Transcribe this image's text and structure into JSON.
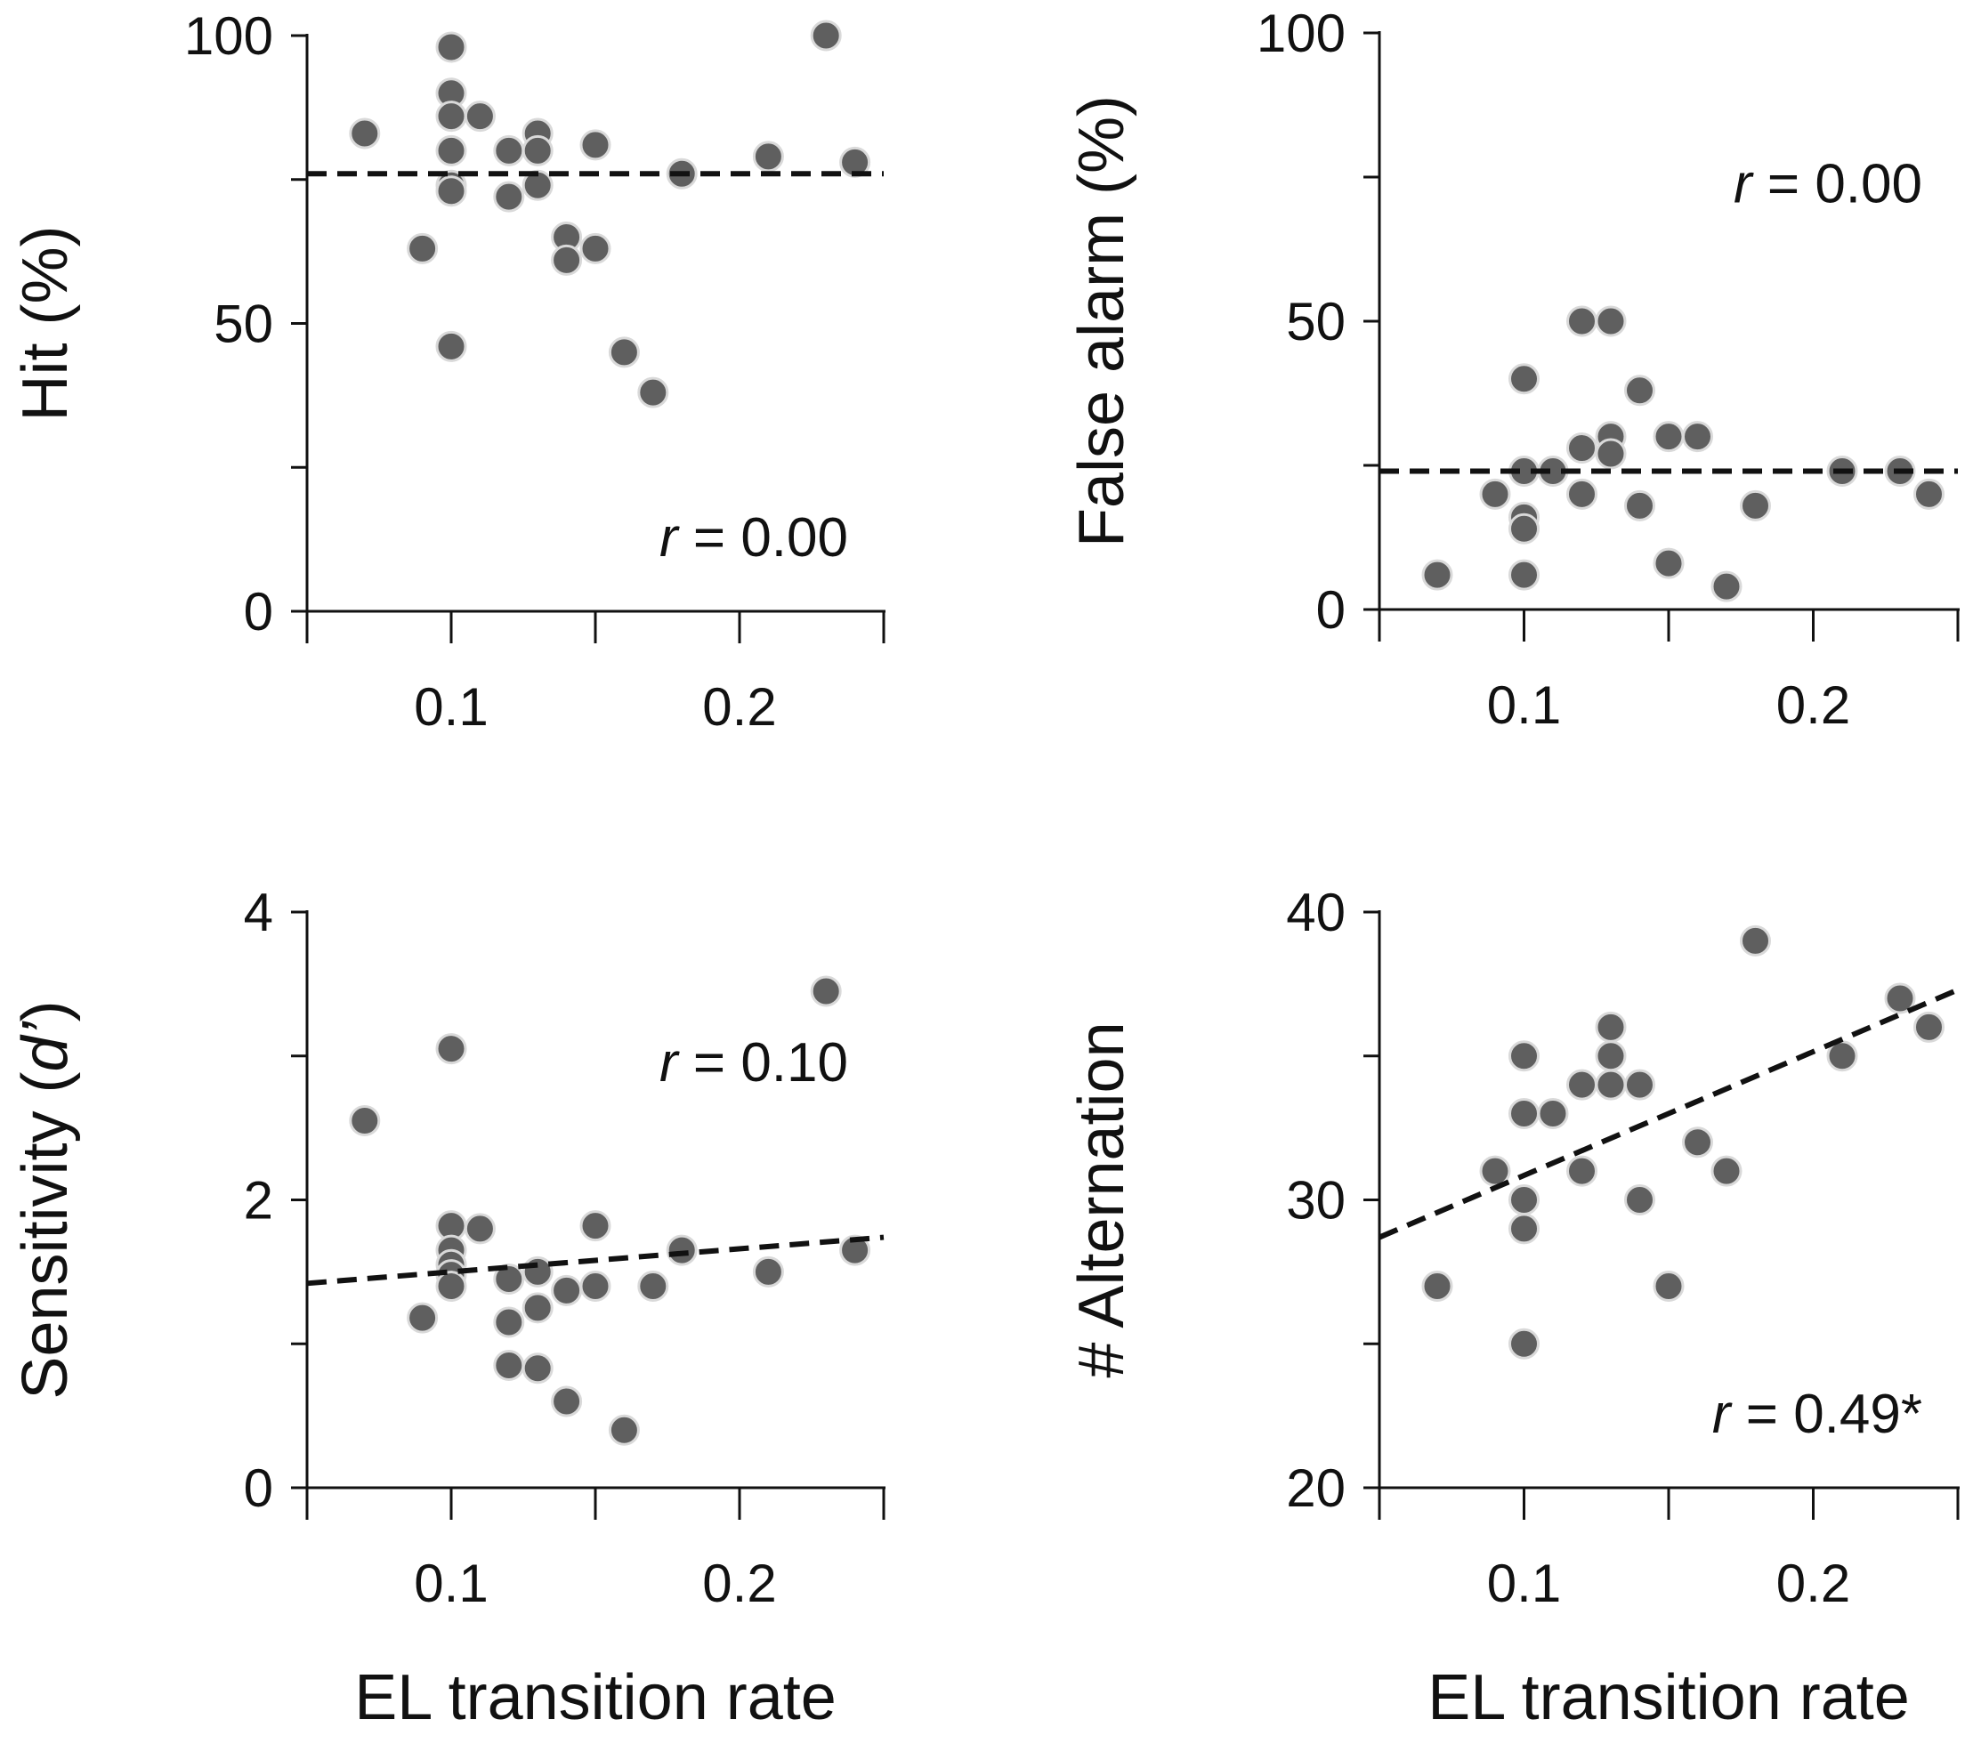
{
  "chart_data": [
    {
      "id": "hit",
      "type": "scatter",
      "ylabel": "Hit (%)",
      "xlabel": "",
      "xlim": [
        0.05,
        0.25
      ],
      "ylim": [
        0,
        100
      ],
      "xticks": [
        0.05,
        0.1,
        0.15,
        0.2,
        0.25
      ],
      "yticks": [
        0,
        25,
        50,
        75,
        100
      ],
      "xtick_labels": [
        {
          "v": 0.1,
          "t": "0.1"
        },
        {
          "v": 0.2,
          "t": "0.2"
        }
      ],
      "ytick_labels": [
        {
          "v": 0,
          "t": "0"
        },
        {
          "v": 50,
          "t": "50"
        },
        {
          "v": 100,
          "t": "100"
        }
      ],
      "annotation": {
        "italic": "r",
        "rest": " = 0.00",
        "position": "bottom-right"
      },
      "trendline": [
        [
          0.05,
          76
        ],
        [
          0.25,
          76
        ]
      ],
      "points": [
        [
          0.07,
          83
        ],
        [
          0.09,
          63
        ],
        [
          0.1,
          98
        ],
        [
          0.1,
          90
        ],
        [
          0.1,
          86
        ],
        [
          0.1,
          80
        ],
        [
          0.1,
          74
        ],
        [
          0.1,
          73
        ],
        [
          0.1,
          46
        ],
        [
          0.11,
          86
        ],
        [
          0.12,
          80
        ],
        [
          0.12,
          72
        ],
        [
          0.13,
          83
        ],
        [
          0.13,
          80
        ],
        [
          0.13,
          74
        ],
        [
          0.14,
          65
        ],
        [
          0.14,
          61
        ],
        [
          0.15,
          81
        ],
        [
          0.15,
          63
        ],
        [
          0.16,
          45
        ],
        [
          0.17,
          38
        ],
        [
          0.18,
          76
        ],
        [
          0.21,
          79
        ],
        [
          0.23,
          100
        ],
        [
          0.24,
          78
        ]
      ]
    },
    {
      "id": "false-alarm",
      "type": "scatter",
      "ylabel": "False alarm (%)",
      "xlabel": "",
      "xlim": [
        0.05,
        0.25
      ],
      "ylim": [
        0,
        100
      ],
      "xticks": [
        0.05,
        0.1,
        0.15,
        0.2,
        0.25
      ],
      "yticks": [
        0,
        25,
        50,
        75,
        100
      ],
      "xtick_labels": [
        {
          "v": 0.1,
          "t": "0.1"
        },
        {
          "v": 0.2,
          "t": "0.2"
        }
      ],
      "ytick_labels": [
        {
          "v": 0,
          "t": "0"
        },
        {
          "v": 50,
          "t": "50"
        },
        {
          "v": 100,
          "t": "100"
        }
      ],
      "annotation": {
        "italic": "r",
        "rest": " = 0.00",
        "position": "top-right"
      },
      "trendline": [
        [
          0.05,
          24
        ],
        [
          0.25,
          24
        ]
      ],
      "points": [
        [
          0.07,
          6
        ],
        [
          0.09,
          20
        ],
        [
          0.1,
          40
        ],
        [
          0.1,
          24
        ],
        [
          0.1,
          16
        ],
        [
          0.1,
          14
        ],
        [
          0.1,
          6
        ],
        [
          0.11,
          24
        ],
        [
          0.12,
          50
        ],
        [
          0.12,
          28
        ],
        [
          0.12,
          20
        ],
        [
          0.13,
          50
        ],
        [
          0.13,
          30
        ],
        [
          0.13,
          27
        ],
        [
          0.14,
          38
        ],
        [
          0.14,
          18
        ],
        [
          0.15,
          30
        ],
        [
          0.15,
          8
        ],
        [
          0.16,
          30
        ],
        [
          0.17,
          4
        ],
        [
          0.18,
          18
        ],
        [
          0.21,
          24
        ],
        [
          0.23,
          24
        ],
        [
          0.24,
          20
        ]
      ]
    },
    {
      "id": "sensitivity",
      "type": "scatter",
      "ylabel_main": "Sensitivity (",
      "ylabel_italic": "d’",
      "ylabel_end": ")",
      "xlabel": "EL transition rate",
      "xlim": [
        0.05,
        0.25
      ],
      "ylim": [
        0,
        4
      ],
      "xticks": [
        0.05,
        0.1,
        0.15,
        0.2,
        0.25
      ],
      "yticks": [
        0,
        1,
        2,
        3,
        4
      ],
      "xtick_labels": [
        {
          "v": 0.1,
          "t": "0.1"
        },
        {
          "v": 0.2,
          "t": "0.2"
        }
      ],
      "ytick_labels": [
        {
          "v": 0,
          "t": "0"
        },
        {
          "v": 2,
          "t": "2"
        },
        {
          "v": 4,
          "t": "4"
        }
      ],
      "annotation": {
        "italic": "r",
        "rest": " = 0.10",
        "position": "top-right"
      },
      "trendline": [
        [
          0.05,
          1.42
        ],
        [
          0.25,
          1.74
        ]
      ],
      "points": [
        [
          0.07,
          2.55
        ],
        [
          0.09,
          1.18
        ],
        [
          0.1,
          3.05
        ],
        [
          0.1,
          1.82
        ],
        [
          0.1,
          1.65
        ],
        [
          0.1,
          1.55
        ],
        [
          0.1,
          1.48
        ],
        [
          0.1,
          1.4
        ],
        [
          0.11,
          1.8
        ],
        [
          0.12,
          1.45
        ],
        [
          0.12,
          1.15
        ],
        [
          0.12,
          0.85
        ],
        [
          0.13,
          1.5
        ],
        [
          0.13,
          1.25
        ],
        [
          0.13,
          0.83
        ],
        [
          0.14,
          1.37
        ],
        [
          0.14,
          0.6
        ],
        [
          0.15,
          1.82
        ],
        [
          0.15,
          1.4
        ],
        [
          0.16,
          0.4
        ],
        [
          0.17,
          1.4
        ],
        [
          0.18,
          1.65
        ],
        [
          0.21,
          1.5
        ],
        [
          0.23,
          3.45
        ],
        [
          0.24,
          1.65
        ]
      ]
    },
    {
      "id": "alternation",
      "type": "scatter",
      "ylabel": "# Alternation",
      "xlabel": "EL transition rate",
      "xlim": [
        0.05,
        0.25
      ],
      "ylim": [
        20,
        40
      ],
      "xticks": [
        0.05,
        0.1,
        0.15,
        0.2,
        0.25
      ],
      "yticks": [
        20,
        25,
        30,
        35,
        40
      ],
      "xtick_labels": [
        {
          "v": 0.1,
          "t": "0.1"
        },
        {
          "v": 0.2,
          "t": "0.2"
        }
      ],
      "ytick_labels": [
        {
          "v": 20,
          "t": "20"
        },
        {
          "v": 30,
          "t": "30"
        },
        {
          "v": 40,
          "t": "40"
        }
      ],
      "annotation": {
        "italic": "r",
        "rest": " = 0.49*",
        "position": "bottom-right"
      },
      "trendline": [
        [
          0.05,
          28.7
        ],
        [
          0.25,
          37.3
        ]
      ],
      "points": [
        [
          0.07,
          27
        ],
        [
          0.09,
          31
        ],
        [
          0.1,
          35
        ],
        [
          0.1,
          33
        ],
        [
          0.1,
          30
        ],
        [
          0.1,
          29
        ],
        [
          0.1,
          25
        ],
        [
          0.11,
          33
        ],
        [
          0.12,
          34
        ],
        [
          0.12,
          31
        ],
        [
          0.13,
          36
        ],
        [
          0.13,
          35
        ],
        [
          0.13,
          34
        ],
        [
          0.14,
          34
        ],
        [
          0.14,
          30
        ],
        [
          0.15,
          27
        ],
        [
          0.16,
          32
        ],
        [
          0.17,
          31
        ],
        [
          0.18,
          39
        ],
        [
          0.21,
          35
        ],
        [
          0.23,
          37
        ],
        [
          0.24,
          36
        ]
      ]
    }
  ]
}
